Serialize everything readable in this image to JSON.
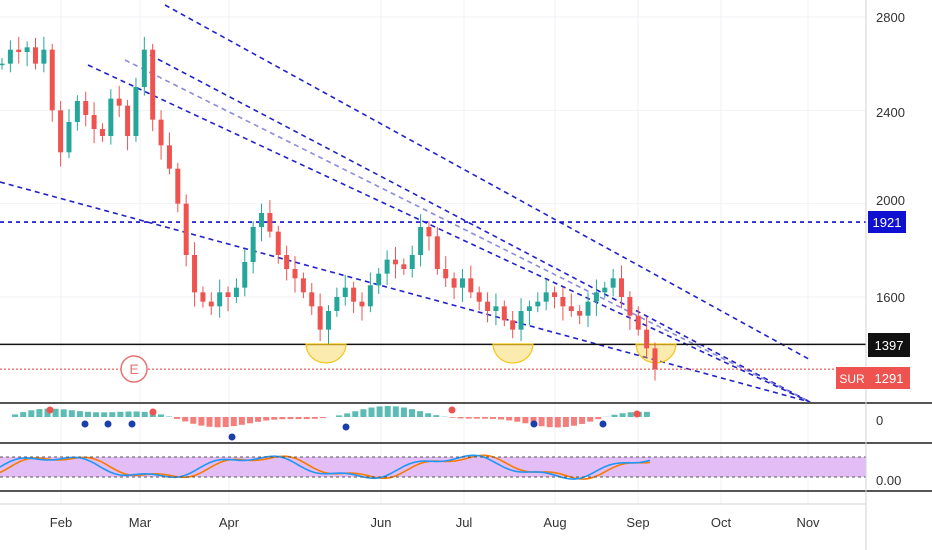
{
  "colors": {
    "up": "#26a69a",
    "down": "#ef5350",
    "channel": "#2222cc",
    "channel_light": "#8c8cdc",
    "level_blue": "#1010d0",
    "level_black": "#111111",
    "sur_line": "#e53935",
    "cup": "#f5c518",
    "event": "#e57373",
    "stoch_band": "#e3bdf5",
    "stoch_k": "#2196f3",
    "stoch_d": "#f57c00",
    "grid": "#f0f2f5",
    "axis_text": "#333333"
  },
  "chart_data": {
    "type": "candlestick",
    "title": "",
    "x_axis_labels": [
      "Feb",
      "Mar",
      "Apr",
      "Jun",
      "Jul",
      "Aug",
      "Sep",
      "Oct",
      "Nov"
    ],
    "price_axis_ticks": [
      2800,
      2400,
      2000,
      1600
    ],
    "ylim": [
      1250,
      2850
    ],
    "horizontal_levels": [
      {
        "value": 1921,
        "label": "1921",
        "style": "dashed-blue"
      },
      {
        "value": 1397,
        "label": "1397",
        "style": "solid-black"
      },
      {
        "value": 1291,
        "label": "1291",
        "tag": "SUR",
        "style": "dotted-red"
      }
    ],
    "event_marker": {
      "label": "E",
      "month": "Mar"
    },
    "series_close_path": [
      [
        0,
        2600
      ],
      [
        1,
        2660
      ],
      [
        2,
        2650
      ],
      [
        3,
        2670
      ],
      [
        4,
        2600
      ],
      [
        5,
        2660
      ],
      [
        6,
        2400
      ],
      [
        7,
        2220
      ],
      [
        8,
        2350
      ],
      [
        9,
        2440
      ],
      [
        10,
        2380
      ],
      [
        11,
        2320
      ],
      [
        12,
        2290
      ],
      [
        13,
        2450
      ],
      [
        14,
        2420
      ],
      [
        15,
        2290
      ],
      [
        16,
        2500
      ],
      [
        17,
        2660
      ],
      [
        18,
        2360
      ],
      [
        19,
        2250
      ],
      [
        20,
        2150
      ],
      [
        21,
        2000
      ],
      [
        22,
        1780
      ],
      [
        23,
        1620
      ],
      [
        24,
        1580
      ],
      [
        25,
        1560
      ],
      [
        26,
        1620
      ],
      [
        27,
        1600
      ],
      [
        28,
        1640
      ],
      [
        29,
        1750
      ],
      [
        30,
        1900
      ],
      [
        31,
        1960
      ],
      [
        32,
        1880
      ],
      [
        33,
        1780
      ],
      [
        34,
        1720
      ],
      [
        35,
        1680
      ],
      [
        36,
        1620
      ],
      [
        37,
        1560
      ],
      [
        38,
        1460
      ],
      [
        39,
        1540
      ],
      [
        40,
        1600
      ],
      [
        41,
        1640
      ],
      [
        42,
        1580
      ],
      [
        43,
        1560
      ],
      [
        44,
        1650
      ],
      [
        45,
        1700
      ],
      [
        46,
        1760
      ],
      [
        47,
        1740
      ],
      [
        48,
        1720
      ],
      [
        49,
        1780
      ],
      [
        50,
        1900
      ],
      [
        51,
        1860
      ],
      [
        52,
        1720
      ],
      [
        53,
        1680
      ],
      [
        54,
        1640
      ],
      [
        55,
        1680
      ],
      [
        56,
        1620
      ],
      [
        57,
        1580
      ],
      [
        58,
        1540
      ],
      [
        59,
        1560
      ],
      [
        60,
        1500
      ],
      [
        61,
        1460
      ],
      [
        62,
        1540
      ],
      [
        63,
        1560
      ],
      [
        64,
        1580
      ],
      [
        65,
        1620
      ],
      [
        66,
        1600
      ],
      [
        67,
        1560
      ],
      [
        68,
        1540
      ],
      [
        69,
        1520
      ],
      [
        70,
        1580
      ],
      [
        71,
        1620
      ],
      [
        72,
        1640
      ],
      [
        73,
        1680
      ],
      [
        74,
        1600
      ],
      [
        75,
        1520
      ],
      [
        76,
        1460
      ],
      [
        77,
        1380
      ],
      [
        78,
        1291
      ]
    ],
    "stoch_axis_label": "0.00",
    "macd_axis_label": "0"
  },
  "axis": {
    "tick_2800": "2800",
    "tick_2400": "2400",
    "tick_2000": "2000",
    "tick_1600": "1600",
    "level_1921": "1921",
    "level_1397": "1397",
    "level_1291": "1291",
    "sur_tag": "SUR",
    "macd_zero": "0",
    "stoch_zero": "0.00",
    "event_label": "E"
  },
  "months": {
    "feb": "Feb",
    "mar": "Mar",
    "apr": "Apr",
    "jun": "Jun",
    "jul": "Jul",
    "aug": "Aug",
    "sep": "Sep",
    "oct": "Oct",
    "nov": "Nov"
  }
}
